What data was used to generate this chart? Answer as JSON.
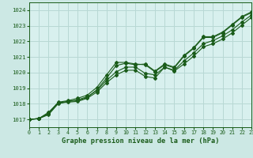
{
  "background_color": "#cce8e4",
  "plot_bg_color": "#d8f0ee",
  "grid_color": "#b8d8d4",
  "line_color": "#1a5c1a",
  "title": "Graphe pression niveau de la mer (hPa)",
  "xlim": [
    0,
    23
  ],
  "ylim": [
    1016.5,
    1024.5
  ],
  "yticks": [
    1017,
    1018,
    1019,
    1020,
    1021,
    1022,
    1023,
    1024
  ],
  "xticks": [
    0,
    1,
    2,
    3,
    4,
    5,
    6,
    7,
    8,
    9,
    10,
    11,
    12,
    13,
    14,
    15,
    16,
    17,
    18,
    19,
    20,
    21,
    22,
    23
  ],
  "series1_y": [
    1017.0,
    1017.05,
    1017.4,
    1018.1,
    1018.2,
    1018.35,
    1018.55,
    1019.05,
    1019.85,
    1020.65,
    1020.65,
    1020.55,
    1020.5,
    1020.05,
    1020.5,
    1020.3,
    1021.05,
    1021.55,
    1022.25,
    1022.25,
    1022.55,
    1023.05,
    1023.55,
    1023.85
  ],
  "series2_y": [
    1017.0,
    1017.05,
    1017.45,
    1018.05,
    1018.15,
    1018.25,
    1018.45,
    1018.85,
    1019.5,
    1020.05,
    1020.35,
    1020.35,
    1019.95,
    1019.85,
    1020.35,
    1020.15,
    1020.75,
    1021.25,
    1021.85,
    1022.05,
    1022.35,
    1022.75,
    1023.25,
    1023.7
  ],
  "series3_y": [
    1017.0,
    1017.05,
    1017.35,
    1018.05,
    1018.1,
    1018.15,
    1018.35,
    1018.75,
    1019.35,
    1019.85,
    1020.15,
    1020.15,
    1019.75,
    1019.65,
    1020.35,
    1020.1,
    1020.55,
    1021.05,
    1021.65,
    1021.85,
    1022.15,
    1022.55,
    1023.05,
    1023.55
  ],
  "series4_y": [
    1017.0,
    1017.05,
    1017.3,
    1018.0,
    1018.15,
    1018.2,
    1018.4,
    1018.9,
    1019.65,
    1020.45,
    1020.6,
    1020.5,
    1020.55,
    1020.1,
    1020.55,
    1020.35,
    1021.1,
    1021.6,
    1022.3,
    1022.3,
    1022.6,
    1023.1,
    1023.6,
    1023.9
  ]
}
